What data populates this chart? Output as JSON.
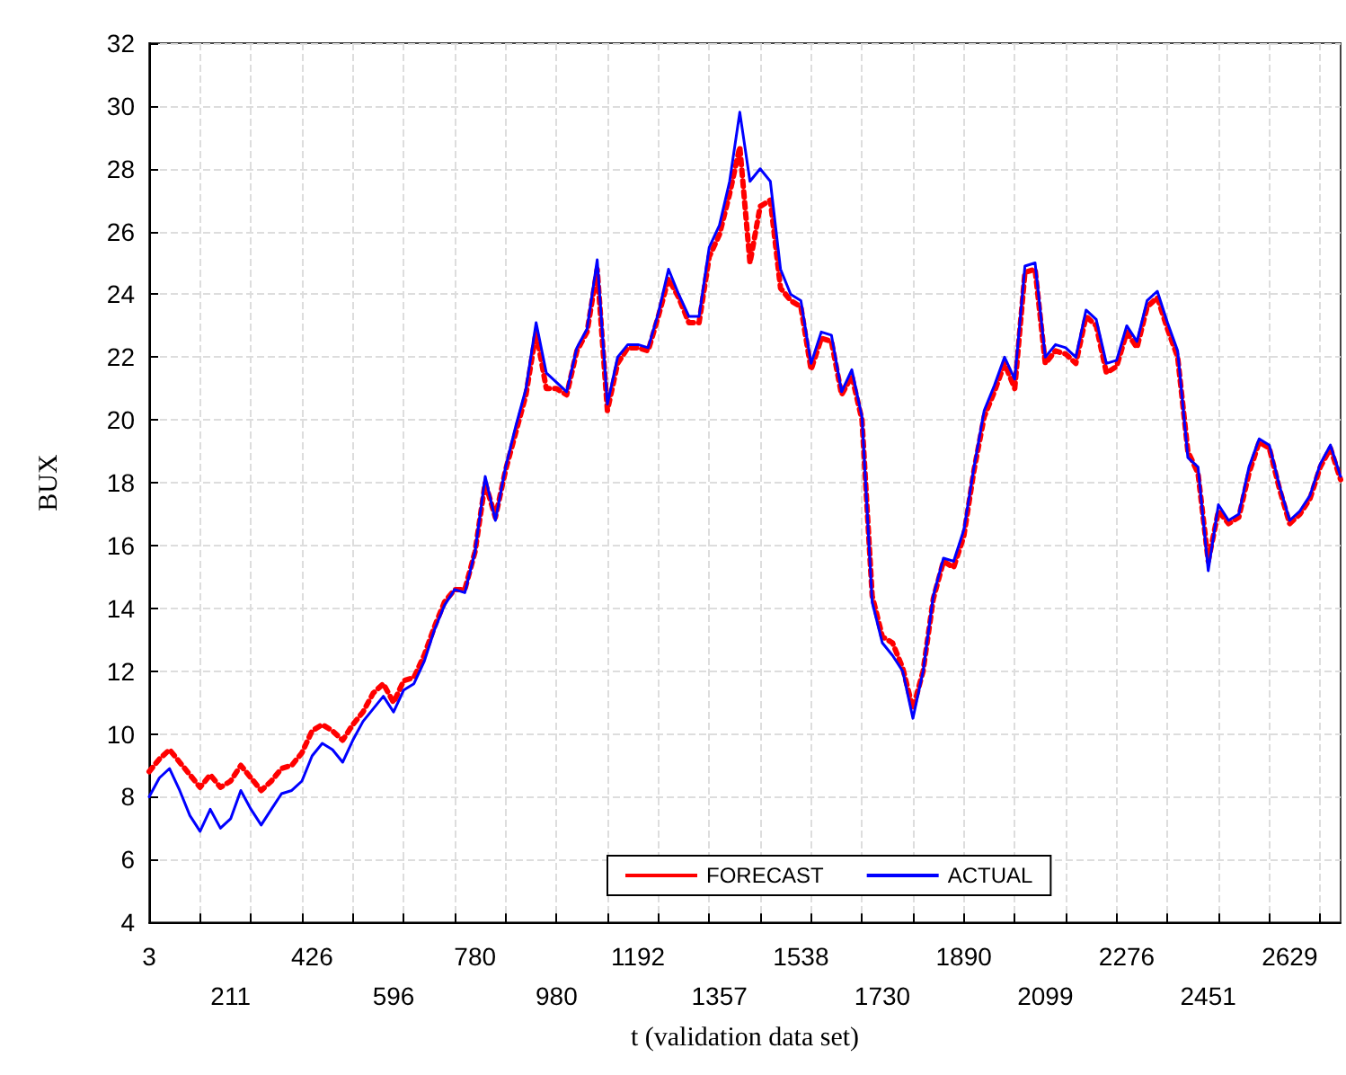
{
  "chart_data": {
    "type": "line",
    "xlabel": "t (validation data set)",
    "ylabel": "BUX",
    "categories": [
      "3",
      null,
      null,
      null,
      null,
      null,
      null,
      null,
      "211",
      null,
      null,
      null,
      null,
      null,
      null,
      null,
      "426",
      null,
      null,
      null,
      null,
      null,
      null,
      null,
      "596",
      null,
      null,
      null,
      null,
      null,
      null,
      null,
      "780",
      null,
      null,
      null,
      null,
      null,
      null,
      null,
      "980",
      null,
      null,
      null,
      null,
      null,
      null,
      null,
      "1192",
      null,
      null,
      null,
      null,
      null,
      null,
      null,
      "1357",
      null,
      null,
      null,
      null,
      null,
      null,
      null,
      "1538",
      null,
      null,
      null,
      null,
      null,
      null,
      null,
      "1730",
      null,
      null,
      null,
      null,
      null,
      null,
      null,
      "1890",
      null,
      null,
      null,
      null,
      null,
      null,
      null,
      "2099",
      null,
      null,
      null,
      null,
      null,
      null,
      null,
      "2276",
      null,
      null,
      null,
      null,
      null,
      null,
      null,
      "2451",
      null,
      null,
      null,
      null,
      null,
      null,
      null,
      "2629",
      null,
      null,
      null,
      null,
      null
    ],
    "series": [
      {
        "name": "FORECAST",
        "color": "#ff0000",
        "line_style": "dotted",
        "values": [
          8.8,
          9.2,
          9.5,
          9.1,
          8.7,
          8.3,
          8.7,
          8.3,
          8.5,
          9.0,
          8.6,
          8.2,
          8.5,
          8.9,
          9.0,
          9.4,
          10.1,
          10.3,
          10.1,
          9.8,
          10.3,
          10.7,
          11.3,
          11.6,
          11.0,
          11.7,
          11.8,
          12.5,
          13.4,
          14.2,
          14.6,
          14.6,
          15.8,
          18.0,
          16.9,
          18.4,
          19.6,
          20.8,
          22.8,
          21.0,
          21.0,
          20.8,
          22.2,
          22.8,
          24.8,
          20.3,
          21.8,
          22.3,
          22.3,
          22.2,
          23.3,
          24.5,
          23.9,
          23.1,
          23.1,
          25.2,
          25.9,
          27.2,
          28.7,
          25.0,
          26.8,
          27.0,
          24.2,
          23.8,
          23.6,
          21.6,
          22.6,
          22.5,
          20.8,
          21.4,
          20.0,
          14.4,
          13.1,
          12.9,
          12.1,
          10.8,
          12.0,
          14.3,
          15.5,
          15.3,
          16.3,
          18.4,
          20.1,
          20.9,
          21.8,
          21.0,
          24.7,
          24.8,
          21.8,
          22.2,
          22.1,
          21.8,
          23.3,
          23.0,
          21.5,
          21.7,
          22.8,
          22.3,
          23.6,
          23.9,
          22.9,
          22.0,
          19.0,
          18.3,
          15.5,
          17.1,
          16.7,
          16.9,
          18.3,
          19.3,
          19.1,
          17.8,
          16.7,
          17.0,
          17.5,
          18.5,
          19.1,
          18.1
        ]
      },
      {
        "name": "ACTUAL",
        "color": "#0000ff",
        "line_style": "solid",
        "values": [
          8.0,
          8.6,
          8.9,
          8.2,
          7.4,
          6.9,
          7.6,
          7.0,
          7.3,
          8.2,
          7.6,
          7.1,
          7.6,
          8.1,
          8.2,
          8.5,
          9.3,
          9.7,
          9.5,
          9.1,
          9.8,
          10.4,
          10.8,
          11.2,
          10.7,
          11.4,
          11.6,
          12.3,
          13.3,
          14.1,
          14.6,
          14.5,
          15.8,
          18.2,
          16.8,
          18.5,
          19.8,
          21.0,
          23.1,
          21.5,
          21.2,
          20.9,
          22.3,
          22.9,
          25.1,
          20.5,
          22.0,
          22.4,
          22.4,
          22.3,
          23.4,
          24.8,
          24.0,
          23.3,
          23.3,
          25.5,
          26.2,
          27.6,
          29.8,
          27.6,
          28.0,
          27.6,
          24.8,
          24.0,
          23.8,
          21.8,
          22.8,
          22.7,
          20.9,
          21.6,
          20.1,
          14.2,
          12.9,
          12.5,
          12.0,
          10.5,
          12.0,
          14.4,
          15.6,
          15.5,
          16.5,
          18.5,
          20.3,
          21.1,
          22.0,
          21.3,
          24.9,
          25.0,
          22.0,
          22.4,
          22.3,
          22.0,
          23.5,
          23.2,
          21.8,
          21.9,
          23.0,
          22.5,
          23.8,
          24.1,
          23.1,
          22.2,
          18.8,
          18.5,
          15.2,
          17.3,
          16.8,
          17.0,
          18.5,
          19.4,
          19.2,
          17.9,
          16.8,
          17.1,
          17.6,
          18.6,
          19.2,
          18.2
        ]
      }
    ],
    "ylim": [
      4,
      32
    ],
    "yticks": [
      4,
      6,
      8,
      10,
      12,
      14,
      16,
      18,
      20,
      22,
      24,
      26,
      28,
      30,
      32
    ],
    "grid": true,
    "legend": "bottom",
    "marker": "none"
  }
}
